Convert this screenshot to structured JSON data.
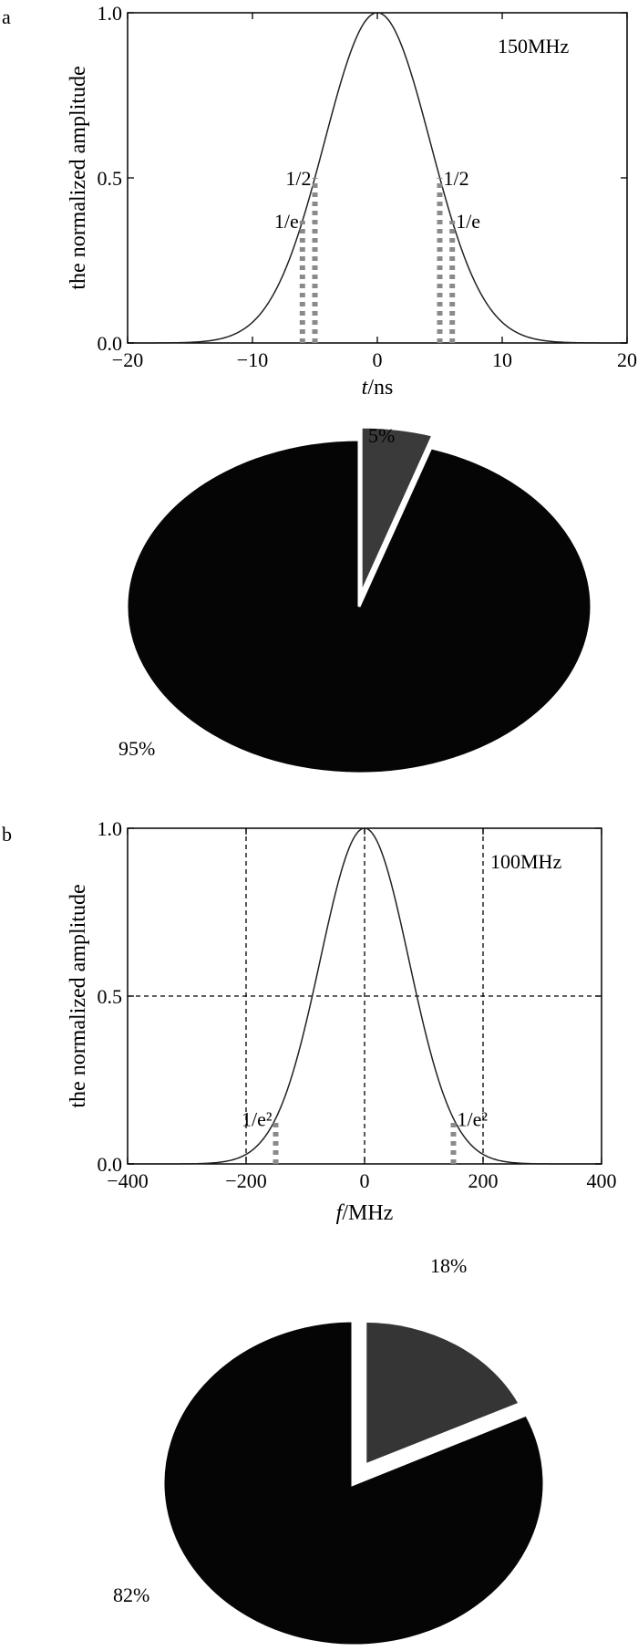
{
  "figure": {
    "panel_a_letter": "a",
    "panel_b_letter": "b"
  },
  "chart_data": [
    {
      "type": "line",
      "panel": "a",
      "xlabel_italic": "t",
      "xlabel_unit": "/ns",
      "ylabel": "the normalized amplitude",
      "xlim": [
        -20,
        20
      ],
      "ylim": [
        0,
        1
      ],
      "xticks": [
        -20,
        -10,
        0,
        10,
        20
      ],
      "xtick_labels": [
        "−20",
        "−10",
        "0",
        "10",
        "20"
      ],
      "yticks": [
        0,
        0.5,
        1
      ],
      "ytick_labels": [
        "0.0",
        "0.5",
        "1.0"
      ],
      "annotation": "150MHz",
      "grid": false,
      "series": [
        {
          "shape": "gaussian",
          "peak": 1.0,
          "center": 0,
          "sigma": 4.25
        }
      ],
      "markers": [
        {
          "x": -5,
          "y_top": 0.5,
          "label": "1/2",
          "side": "left"
        },
        {
          "x": -6,
          "y_top": 0.37,
          "label": "1/e",
          "side": "left"
        },
        {
          "x": 5,
          "y_top": 0.5,
          "label": "1/2",
          "side": "right"
        },
        {
          "x": 6,
          "y_top": 0.37,
          "label": "1/e",
          "side": "right"
        }
      ]
    },
    {
      "type": "pie",
      "panel": "a",
      "slices": [
        {
          "label": "5%",
          "value": 5,
          "color": "#3a3a3a",
          "exploded": true
        },
        {
          "label": "95%",
          "value": 95,
          "color": "#050505",
          "exploded": false
        }
      ]
    },
    {
      "type": "line",
      "panel": "b",
      "xlabel_italic": "f",
      "xlabel_unit": "/MHz",
      "ylabel": "the normalized amplitude",
      "xlim": [
        -400,
        400
      ],
      "ylim": [
        0,
        1
      ],
      "xticks": [
        -400,
        -200,
        0,
        200,
        400
      ],
      "xtick_labels": [
        "−400",
        "−200",
        "0",
        "200",
        "400"
      ],
      "yticks": [
        0,
        0.5,
        1
      ],
      "ytick_labels": [
        "0.0",
        "0.5",
        "1.0"
      ],
      "annotation": "100MHz",
      "grid": true,
      "grid_x": [
        -200,
        0,
        200
      ],
      "grid_y": [
        0.5
      ],
      "series": [
        {
          "shape": "gaussian",
          "peak": 1.0,
          "center": 0,
          "sigma": 75
        }
      ],
      "markers": [
        {
          "x": -150,
          "y_top": 0.135,
          "label": "1/e²",
          "side": "left"
        },
        {
          "x": 150,
          "y_top": 0.135,
          "label": "1/e²",
          "side": "right"
        }
      ]
    },
    {
      "type": "pie",
      "panel": "b",
      "slices": [
        {
          "label": "18%",
          "value": 18,
          "color": "#353535",
          "exploded": true
        },
        {
          "label": "82%",
          "value": 82,
          "color": "#050505",
          "exploded": false
        }
      ]
    }
  ]
}
